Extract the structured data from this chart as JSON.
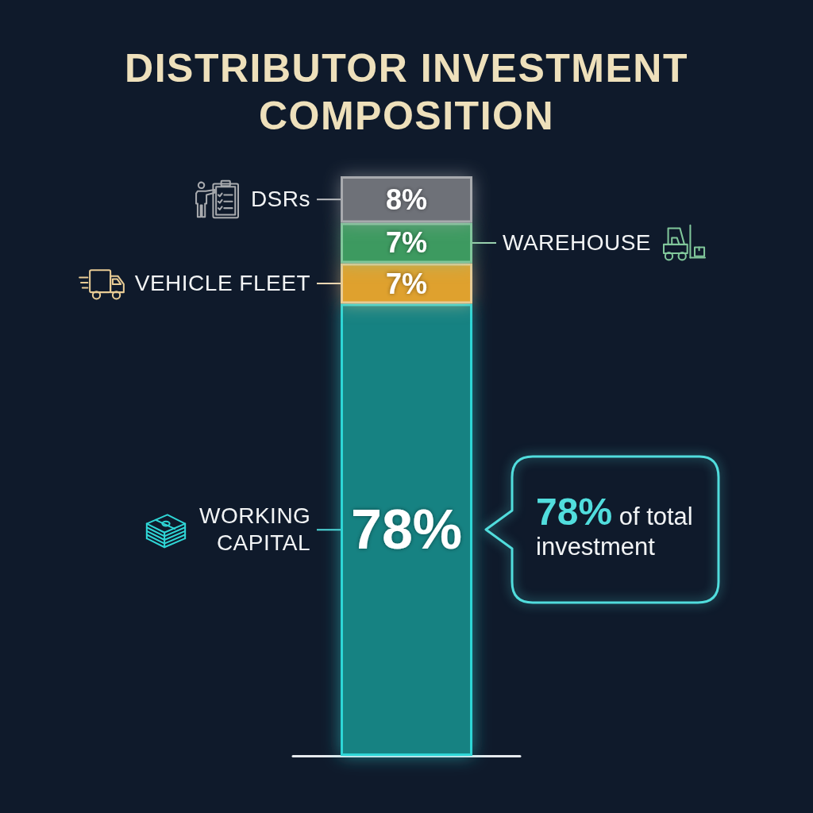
{
  "chart_data": {
    "type": "bar",
    "title": "DISTRIBUTOR INVESTMENT COMPOSITION",
    "categories": [
      null
    ],
    "stacked": true,
    "ylim": [
      0,
      100
    ],
    "legend": "top left",
    "series": [
      {
        "name": "WORKING CAPITAL",
        "color": "#138282",
        "values": [
          78
        ],
        "value_labels": [
          "78%"
        ]
      },
      {
        "name": "VEHICLE FLEET",
        "color": "#dfa12f",
        "values": [
          7
        ],
        "value_labels": [
          "7%"
        ]
      },
      {
        "name": "WAREHOUSE",
        "color": "#3e9a60",
        "values": [
          7
        ],
        "value_labels": [
          "7%"
        ]
      },
      {
        "name": "DSRs",
        "color": "#6e7178",
        "values": [
          8
        ],
        "value_labels": [
          "8%"
        ]
      }
    ],
    "annotations": [
      "78% of total investment"
    ]
  }
}
